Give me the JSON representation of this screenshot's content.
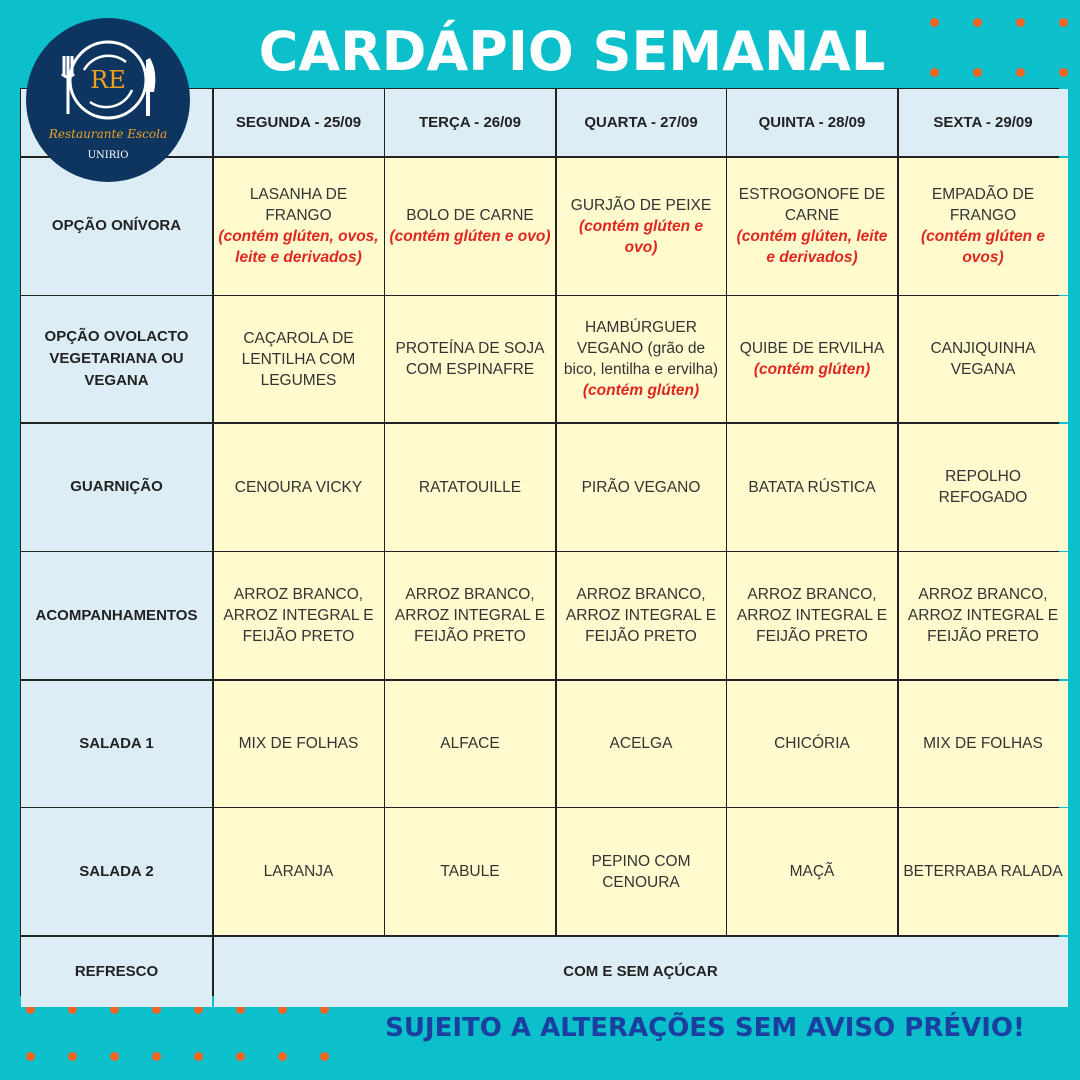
{
  "header": {
    "title": "CARDÁPIO SEMANAL"
  },
  "logo": {
    "initials": "RE",
    "name": "Restaurante Escola",
    "org": "UNIRIO"
  },
  "colors": {
    "background": "#0bbfcb",
    "accent_dots": "#f26522",
    "allergen": "#e0261e",
    "footer": "#1b3fa0",
    "logo": "#0e3560"
  },
  "days": [
    "SEGUNDA - 25/09",
    "TERÇA - 26/09",
    "QUARTA - 27/09",
    "QUINTA - 28/09",
    "SEXTA - 29/09"
  ],
  "rows": [
    {
      "label": "OPÇÃO ONÍVORA",
      "cells": [
        {
          "dish": "LASANHA DE FRANGO",
          "note": "(contém glúten, ovos, leite e derivados)"
        },
        {
          "dish": "BOLO DE CARNE",
          "note": "(contém glúten e ovo)"
        },
        {
          "dish": "GURJÃO DE PEIXE",
          "note": "(contém glúten e ovo)"
        },
        {
          "dish": "ESTROGONOFE DE CARNE",
          "note": "(contém glúten, leite e derivados)"
        },
        {
          "dish": "EMPADÃO DE FRANGO",
          "note": "(contém glúten e ovos)"
        }
      ]
    },
    {
      "label": "OPÇÃO OVOLACTO VEGETARIANA OU VEGANA",
      "cells": [
        {
          "dish": "CAÇAROLA DE LENTILHA COM LEGUMES"
        },
        {
          "dish": "PROTEÍNA DE SOJA COM ESPINAFRE"
        },
        {
          "dish": "HAMBÚRGUER VEGANO (grão de bico, lentilha e ervilha)",
          "note": "(contém glúten)"
        },
        {
          "dish": "QUIBE DE ERVILHA",
          "note": "(contém glúten)"
        },
        {
          "dish": "CANJIQUINHA VEGANA"
        }
      ]
    },
    {
      "label": "GUARNIÇÃO",
      "cells": [
        {
          "dish": "CENOURA VICKY"
        },
        {
          "dish": "RATATOUILLE"
        },
        {
          "dish": "PIRÃO VEGANO"
        },
        {
          "dish": "BATATA RÚSTICA"
        },
        {
          "dish": "REPOLHO REFOGADO"
        }
      ]
    },
    {
      "label": "ACOMPANHAMENTOS",
      "cells": [
        {
          "dish": "ARROZ BRANCO, ARROZ INTEGRAL E FEIJÃO PRETO"
        },
        {
          "dish": "ARROZ BRANCO, ARROZ INTEGRAL E FEIJÃO PRETO"
        },
        {
          "dish": "ARROZ BRANCO, ARROZ INTEGRAL E FEIJÃO PRETO"
        },
        {
          "dish": "ARROZ BRANCO, ARROZ INTEGRAL E FEIJÃO PRETO"
        },
        {
          "dish": "ARROZ BRANCO, ARROZ INTEGRAL E FEIJÃO PRETO"
        }
      ]
    },
    {
      "label": "SALADA 1",
      "cells": [
        {
          "dish": "MIX DE FOLHAS"
        },
        {
          "dish": "ALFACE"
        },
        {
          "dish": "ACELGA"
        },
        {
          "dish": "CHICÓRIA"
        },
        {
          "dish": "MIX DE FOLHAS"
        }
      ]
    },
    {
      "label": "SALADA 2",
      "cells": [
        {
          "dish": "LARANJA"
        },
        {
          "dish": "TABULE"
        },
        {
          "dish": "PEPINO COM CENOURA"
        },
        {
          "dish": "MAÇÃ"
        },
        {
          "dish": "BETERRABA RALADA"
        }
      ]
    }
  ],
  "refresco": {
    "label": "REFRESCO",
    "value": "COM E SEM AÇÚCAR"
  },
  "footer": {
    "text": "SUJEITO A ALTERAÇÕES SEM AVISO PRÉVIO!"
  }
}
